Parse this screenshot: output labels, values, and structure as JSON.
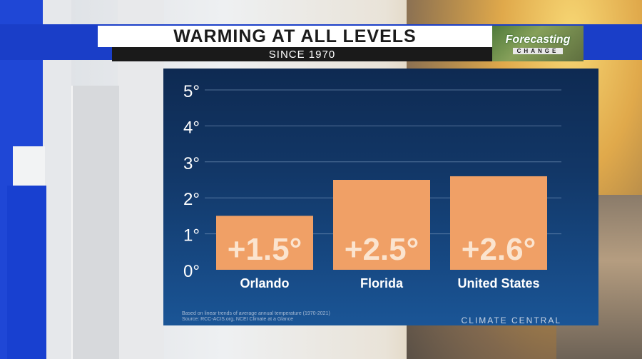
{
  "banner": {
    "title": "WARMING AT ALL LEVELS",
    "subtitle": "SINCE 1970",
    "logo_top": "Forecasting",
    "logo_bottom": "CHANGE"
  },
  "footnote": {
    "line1": "Based on linear trends of average annual temperature (1970-2021)",
    "line2": "Source: RCC-ACIS.org, NCEI Climate at a Glance"
  },
  "credit": "CLIMATE CENTRAL",
  "colors": {
    "bar": "#f0a066",
    "bar_text": "#fbe4cf",
    "grid": "#8aa6c8",
    "axis_text": "#ffffff"
  },
  "chart_data": {
    "type": "bar",
    "title": "WARMING AT ALL LEVELS",
    "subtitle": "SINCE 1970",
    "categories": [
      "Orlando",
      "Florida",
      "United States"
    ],
    "values": [
      1.5,
      2.5,
      2.6
    ],
    "value_labels": [
      "+1.5°",
      "+2.5°",
      "+2.6°"
    ],
    "ylim": [
      0,
      5
    ],
    "yticks": [
      0,
      1,
      2,
      3,
      4,
      5
    ],
    "ytick_labels": [
      "0°",
      "1°",
      "2°",
      "3°",
      "4°",
      "5°"
    ],
    "xlabel": "",
    "ylabel": "",
    "grid": true
  }
}
